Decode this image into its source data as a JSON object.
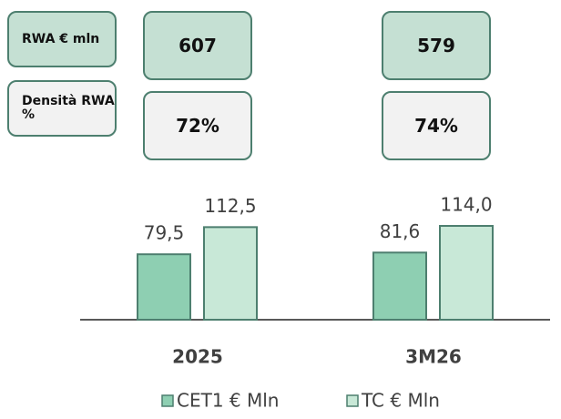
{
  "table": {
    "rows": [
      [
        "RWA € mln",
        "607",
        "579"
      ],
      [
        "Densità RWA %",
        "72%",
        "74%"
      ]
    ]
  },
  "chart_data": {
    "type": "bar",
    "categories": [
      "2025",
      "3M26"
    ],
    "series": [
      {
        "name": "CET1 € Mln",
        "color": "#8ecfb2",
        "values": [
          79.5,
          81.6
        ],
        "value_labels": [
          "79,5",
          "81,6"
        ]
      },
      {
        "name": "TC € Mln",
        "color": "#c8e8d7",
        "values": [
          112.5,
          114.0
        ],
        "value_labels": [
          "112,5",
          "114,0"
        ]
      }
    ]
  }
}
